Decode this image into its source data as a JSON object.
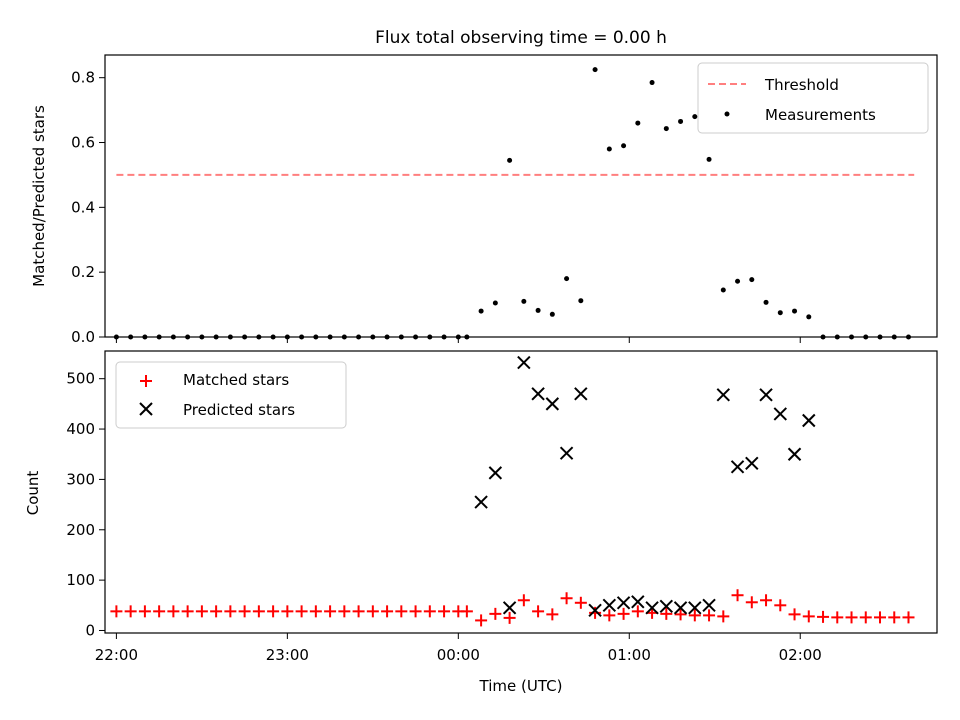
{
  "chart_data": [
    {
      "type": "scatter",
      "title": "Flux total observing time = 0.00 h",
      "xlabel": "",
      "ylabel": "Matched/Predicted stars",
      "xlim": [
        "21:56",
        "02:48"
      ],
      "ylim": [
        0,
        0.87
      ],
      "yticks": [
        0.0,
        0.2,
        0.4,
        0.6,
        0.8
      ],
      "ytick_labels": [
        "0.0",
        "0.2",
        "0.4",
        "0.6",
        "0.8"
      ],
      "grid": false,
      "legend": "top-right",
      "series": [
        {
          "name": "Threshold",
          "kind": "line",
          "style": "dashed",
          "color": "#ff7f7f",
          "x": [
            "22:00",
            "02:40"
          ],
          "y": [
            0.5,
            0.5
          ]
        },
        {
          "name": "Measurements",
          "kind": "scatter",
          "marker": "dot",
          "color": "#000000",
          "x": [
            "22:00",
            "22:05",
            "22:10",
            "22:15",
            "22:20",
            "22:25",
            "22:30",
            "22:35",
            "22:40",
            "22:45",
            "22:50",
            "22:55",
            "23:00",
            "23:05",
            "23:10",
            "23:15",
            "23:20",
            "23:25",
            "23:30",
            "23:35",
            "23:40",
            "23:45",
            "23:50",
            "23:55",
            "00:00",
            "00:03",
            "00:08",
            "00:13",
            "00:18",
            "00:23",
            "00:28",
            "00:33",
            "00:38",
            "00:43",
            "00:48",
            "00:53",
            "00:58",
            "01:03",
            "01:08",
            "01:13",
            "01:18",
            "01:23",
            "01:28",
            "01:33",
            "01:38",
            "01:43",
            "01:48",
            "01:53",
            "01:58",
            "02:03",
            "02:08",
            "02:13",
            "02:18",
            "02:23",
            "02:28",
            "02:33",
            "02:38"
          ],
          "y": [
            0,
            0,
            0,
            0,
            0,
            0,
            0,
            0,
            0,
            0,
            0,
            0,
            0,
            0,
            0,
            0,
            0,
            0,
            0,
            0,
            0,
            0,
            0,
            0,
            0,
            0,
            0.08,
            0.105,
            0.545,
            0.11,
            0.082,
            0.07,
            0.18,
            0.112,
            0.825,
            0.58,
            0.59,
            0.66,
            0.785,
            0.643,
            0.665,
            0.68,
            0.548,
            0.145,
            0.172,
            0.177,
            0.107,
            0.075,
            0.08,
            0.062,
            0,
            0,
            0,
            0,
            0,
            0,
            0
          ]
        }
      ]
    },
    {
      "type": "scatter",
      "title": "",
      "xlabel": "Time (UTC)",
      "ylabel": "Count",
      "xlim": [
        "21:56",
        "02:48"
      ],
      "xticks": [
        "22:00",
        "23:00",
        "00:00",
        "01:00",
        "02:00"
      ],
      "xtick_labels": [
        "22:00",
        "23:00",
        "00:00",
        "01:00",
        "02:00"
      ],
      "ylim": [
        -5,
        555
      ],
      "yticks": [
        0,
        100,
        200,
        300,
        400,
        500
      ],
      "ytick_labels": [
        "0",
        "100",
        "200",
        "300",
        "400",
        "500"
      ],
      "grid": false,
      "legend": "top-left",
      "series": [
        {
          "name": "Matched stars",
          "marker": "plus",
          "color": "#ff0000",
          "x": [
            "22:00",
            "22:05",
            "22:10",
            "22:15",
            "22:20",
            "22:25",
            "22:30",
            "22:35",
            "22:40",
            "22:45",
            "22:50",
            "22:55",
            "23:00",
            "23:05",
            "23:10",
            "23:15",
            "23:20",
            "23:25",
            "23:30",
            "23:35",
            "23:40",
            "23:45",
            "23:50",
            "23:55",
            "00:00",
            "00:03",
            "00:08",
            "00:13",
            "00:18",
            "00:23",
            "00:28",
            "00:33",
            "00:38",
            "00:43",
            "00:48",
            "00:53",
            "00:58",
            "01:03",
            "01:08",
            "01:13",
            "01:18",
            "01:23",
            "01:28",
            "01:33",
            "01:38",
            "01:43",
            "01:48",
            "01:53",
            "01:58",
            "02:03",
            "02:08",
            "02:13",
            "02:18",
            "02:23",
            "02:28",
            "02:33",
            "02:38"
          ],
          "y": [
            38,
            38,
            38,
            38,
            38,
            38,
            38,
            38,
            38,
            38,
            38,
            38,
            38,
            38,
            38,
            38,
            38,
            38,
            38,
            38,
            38,
            38,
            38,
            38,
            38,
            38,
            20,
            33,
            25,
            60,
            38,
            32,
            64,
            55,
            35,
            30,
            33,
            38,
            35,
            33,
            32,
            30,
            30,
            28,
            70,
            56,
            60,
            50,
            32,
            28,
            27,
            26,
            26,
            26,
            26,
            26,
            26
          ]
        },
        {
          "name": "Predicted stars",
          "marker": "x",
          "color": "#000000",
          "x": [
            "00:08",
            "00:13",
            "00:18",
            "00:23",
            "00:28",
            "00:33",
            "00:38",
            "00:43",
            "00:48",
            "00:53",
            "00:58",
            "01:03",
            "01:08",
            "01:13",
            "01:18",
            "01:23",
            "01:28",
            "01:33",
            "01:38",
            "01:43",
            "01:48",
            "01:53",
            "01:58",
            "02:03"
          ],
          "y": [
            255,
            313,
            45,
            532,
            470,
            450,
            352,
            470,
            40,
            50,
            55,
            57,
            45,
            48,
            45,
            45,
            50,
            468,
            325,
            332,
            468,
            430,
            350,
            417
          ]
        }
      ]
    }
  ]
}
